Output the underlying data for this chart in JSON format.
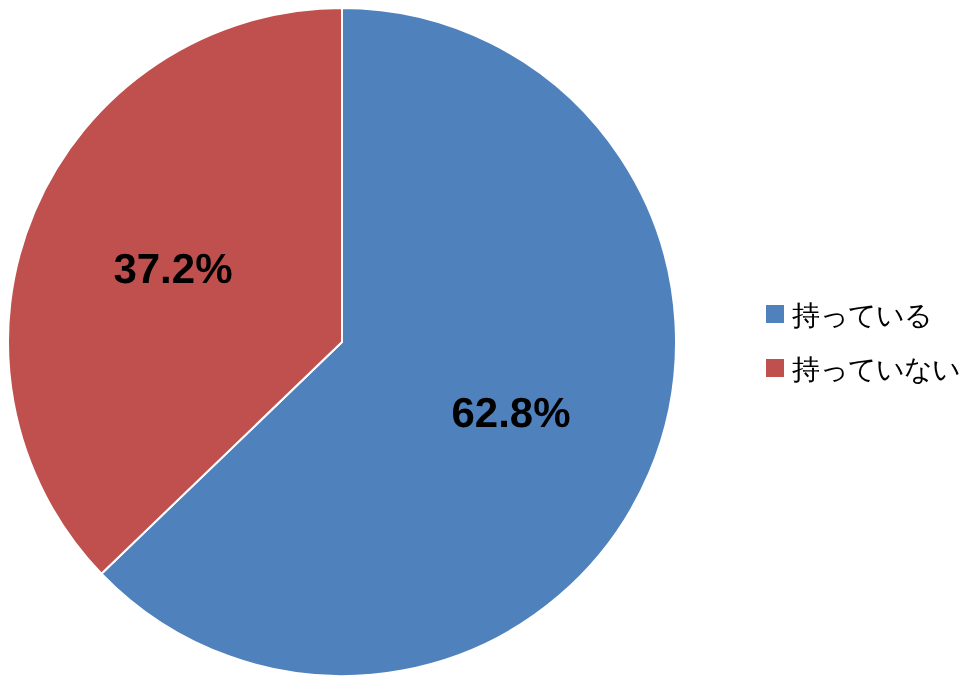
{
  "chart_data": {
    "type": "pie",
    "categories": [
      "持っている",
      "持っていない"
    ],
    "values": [
      62.8,
      37.2
    ],
    "colors": [
      "#4f81bd",
      "#c0504d"
    ],
    "value_labels": [
      "62.8%",
      "37.2%"
    ],
    "legend": "right"
  }
}
